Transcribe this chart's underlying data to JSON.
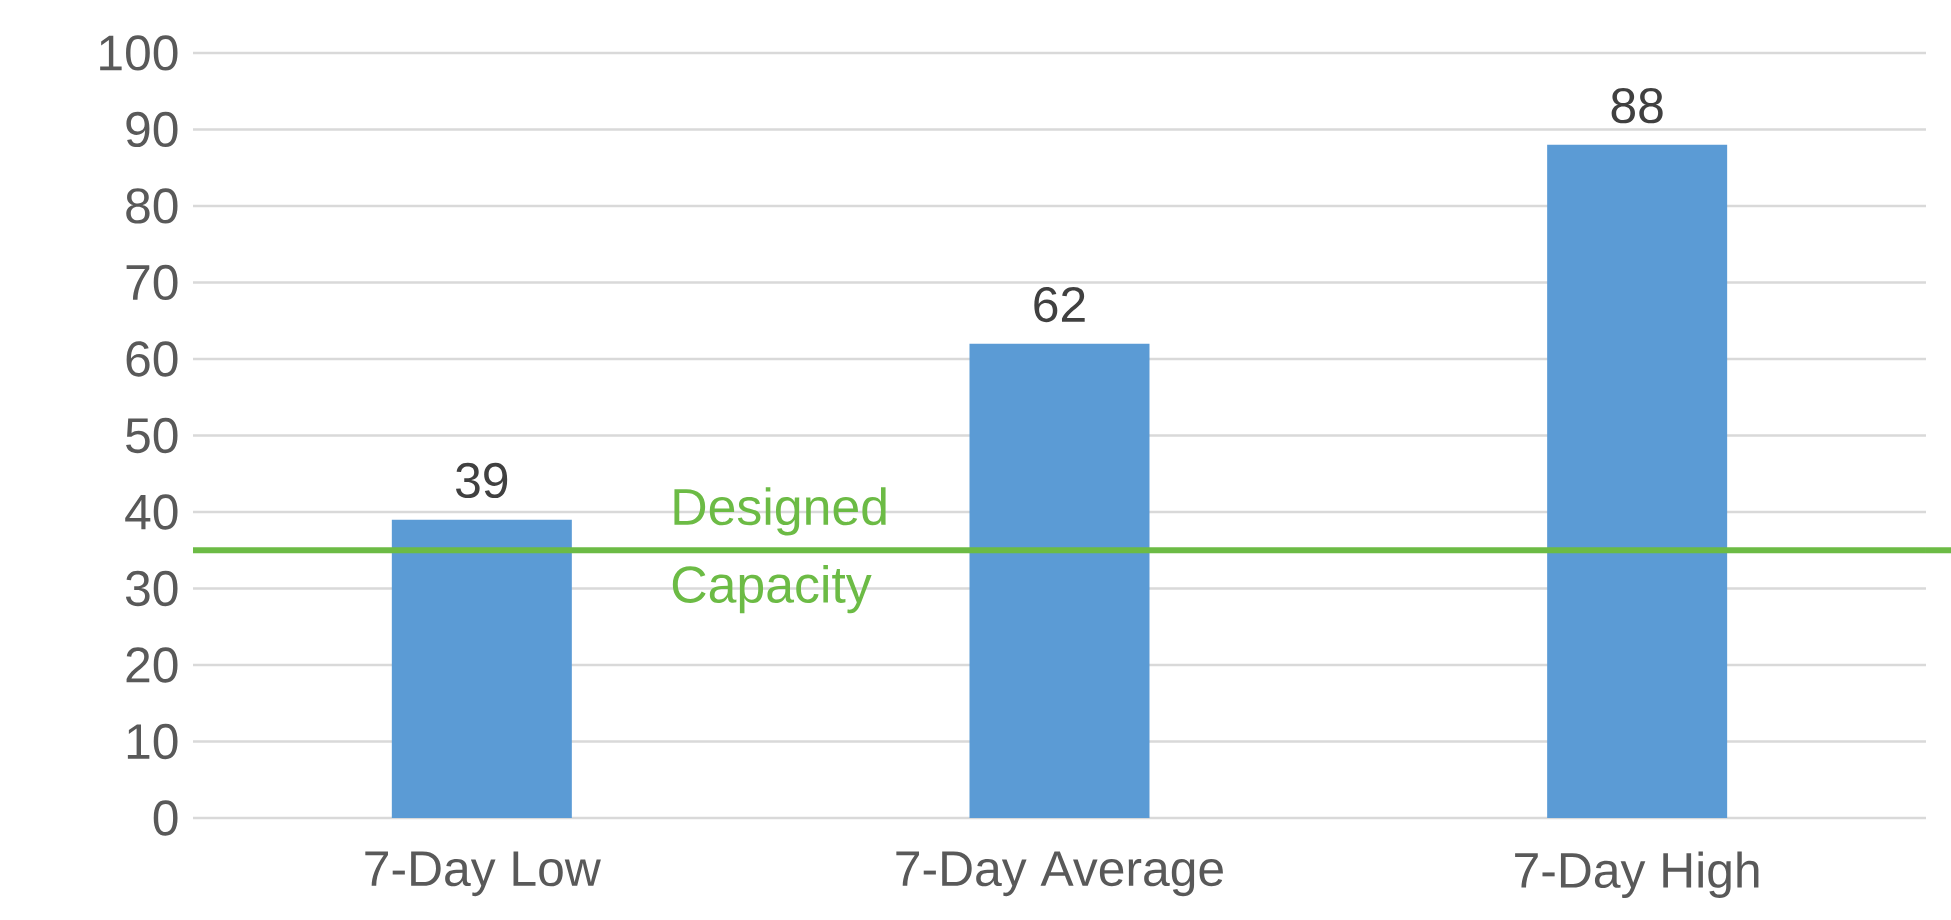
{
  "chart_data": {
    "type": "bar",
    "categories": [
      "7-Day Low",
      "7-Day Average",
      "7-Day High"
    ],
    "values": [
      39,
      62,
      88
    ],
    "color": "#5b9bd5",
    "data_labels": true,
    "ylim": [
      0,
      100
    ],
    "yticks": [
      0,
      10,
      20,
      30,
      40,
      50,
      60,
      70,
      80,
      90,
      100
    ],
    "grid": "y",
    "ref_lines": [
      {
        "axis": "y",
        "value": 35,
        "label": "Designed Capacity",
        "color": "#6cbb45"
      }
    ]
  }
}
